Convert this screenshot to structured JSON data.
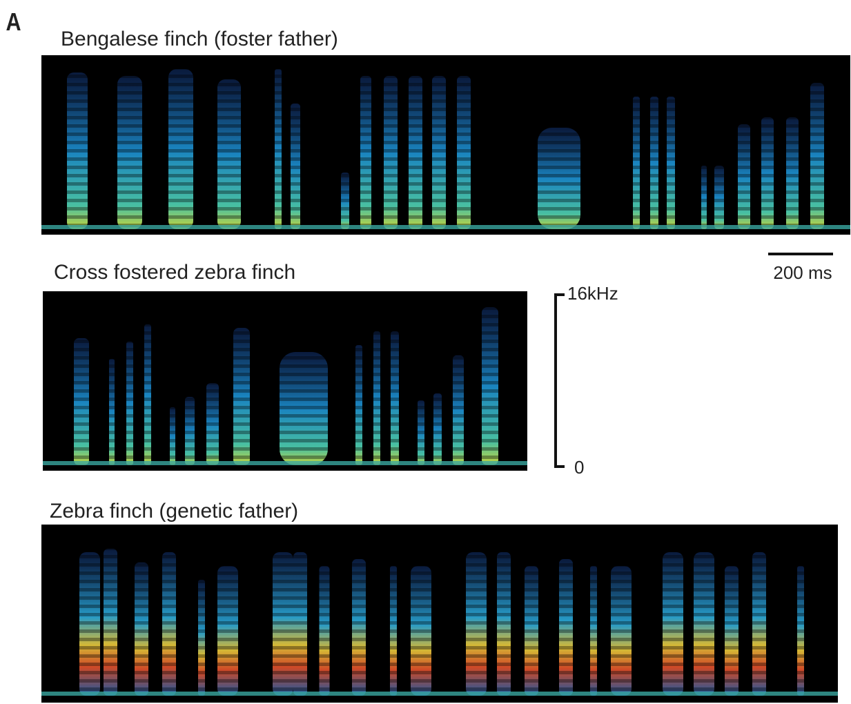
{
  "panel_label": "A",
  "spectrograms": [
    {
      "title": "Bengalese finch (foster father)"
    },
    {
      "title": "Cross fostered zebra finch"
    },
    {
      "title": "Zebra finch (genetic father)"
    }
  ],
  "scale_bar": {
    "time": "200 ms",
    "frequency_top": "16kHz",
    "frequency_bottom": "0"
  }
}
